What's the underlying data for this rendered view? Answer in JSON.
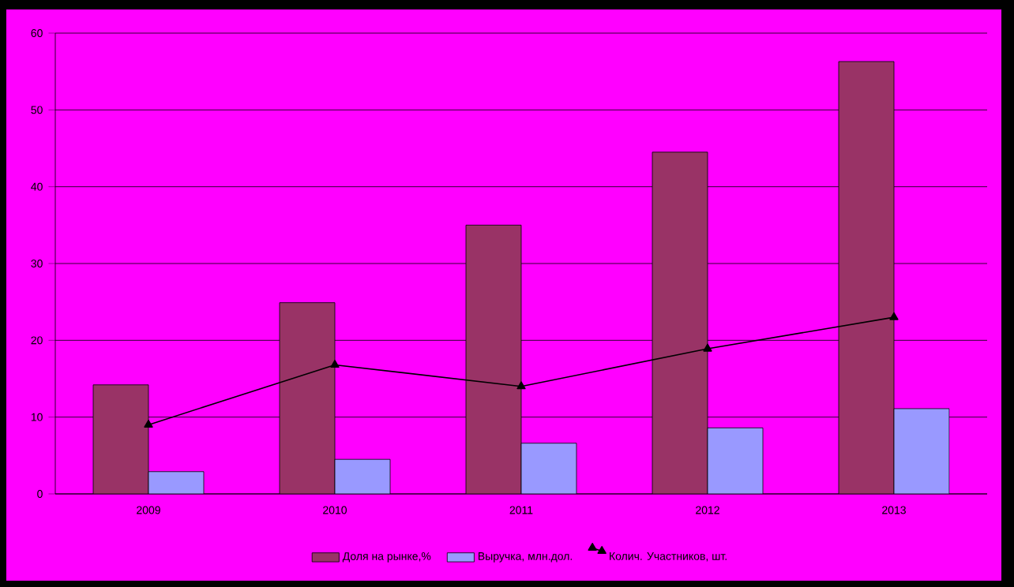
{
  "chart_data": {
    "type": "bar",
    "categories": [
      "2009",
      "2010",
      "2011",
      "2012",
      "2013"
    ],
    "series": [
      {
        "name": "Доля на рынке,%",
        "color": "#993366",
        "values": [
          14.2,
          24.9,
          35,
          44.5,
          56.3
        ]
      },
      {
        "name": "Выручка, млн.дол.",
        "color": "#9999ff",
        "values": [
          2.9,
          4.5,
          6.6,
          8.6,
          11.1
        ]
      },
      {
        "name": "Колич. Участников, шт.",
        "type": "line",
        "color": "#000000",
        "marker": "triangle",
        "line_style": "solid",
        "values": [
          9,
          16.8,
          14,
          18.9,
          23
        ]
      }
    ],
    "ylim": [
      0,
      60
    ],
    "yticks": [
      0,
      10,
      20,
      30,
      40,
      50,
      60
    ],
    "grid": "y",
    "legend": "bottom"
  }
}
